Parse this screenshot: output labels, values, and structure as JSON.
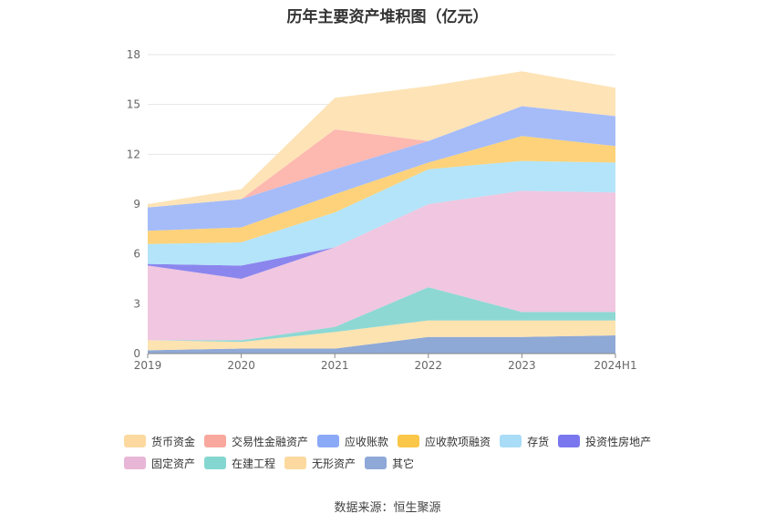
{
  "title": "历年主要资产堆积图（亿元）",
  "source": "数据来源：恒生聚源",
  "chart_data": {
    "type": "area",
    "stacked": true,
    "categories": [
      "2019",
      "2020",
      "2021",
      "2022",
      "2023",
      "2024H1"
    ],
    "ylim": [
      0,
      18
    ],
    "yticks": [
      0,
      3,
      6,
      9,
      12,
      15,
      18
    ],
    "grid": true,
    "legend_position": "bottom",
    "series": [
      {
        "name": "其它",
        "color": "#8fa9d6",
        "values": [
          0.2,
          0.3,
          0.3,
          1.0,
          1.0,
          1.1
        ]
      },
      {
        "name": "无形资产",
        "color": "#fde3b0",
        "values": [
          0.6,
          0.4,
          1.0,
          1.0,
          1.0,
          0.9
        ]
      },
      {
        "name": "在建工程",
        "color": "#8ed8d4",
        "values": [
          0.0,
          0.1,
          0.3,
          2.0,
          0.5,
          0.5
        ]
      },
      {
        "name": "固定资产",
        "color": "#f0c6e0",
        "values": [
          4.5,
          3.7,
          4.8,
          5.0,
          7.3,
          7.2
        ]
      },
      {
        "name": "投资性房地产",
        "color": "#8b86ee",
        "values": [
          0.1,
          0.8,
          0.0,
          0.0,
          0.0,
          0.0
        ]
      },
      {
        "name": "存货",
        "color": "#b3e4f9",
        "values": [
          1.2,
          1.4,
          2.1,
          2.1,
          1.8,
          1.8
        ]
      },
      {
        "name": "应收款项融资",
        "color": "#fdd27a",
        "values": [
          0.8,
          0.9,
          1.1,
          0.4,
          1.5,
          1.0
        ]
      },
      {
        "name": "应收账款",
        "color": "#a5bcf9",
        "values": [
          1.4,
          1.7,
          1.5,
          1.3,
          1.8,
          1.8
        ]
      },
      {
        "name": "交易性金融资产",
        "color": "#fdb8b0",
        "values": [
          0.0,
          0.0,
          2.4,
          0.0,
          0.0,
          0.0
        ]
      },
      {
        "name": "货币资金",
        "color": "#fde3b6",
        "values": [
          0.2,
          0.6,
          1.9,
          3.3,
          2.1,
          1.7
        ]
      }
    ]
  },
  "legend_rows": [
    [
      {
        "label": "货币资金",
        "color": "#fdd9a0"
      },
      {
        "label": "交易性金融资产",
        "color": "#f9a89d"
      },
      {
        "label": "应收账款",
        "color": "#8aa9f7"
      },
      {
        "label": "应收款项融资",
        "color": "#fbc748"
      },
      {
        "label": "存货",
        "color": "#a8dcf7"
      },
      {
        "label": "投资性房地产",
        "color": "#7a77ee"
      }
    ],
    [
      {
        "label": "固定资产",
        "color": "#e8b6d6"
      },
      {
        "label": "在建工程",
        "color": "#84d7d0"
      },
      {
        "label": "无形资产",
        "color": "#fdd9a0"
      },
      {
        "label": "其它",
        "color": "#8ea8d8"
      }
    ]
  ]
}
